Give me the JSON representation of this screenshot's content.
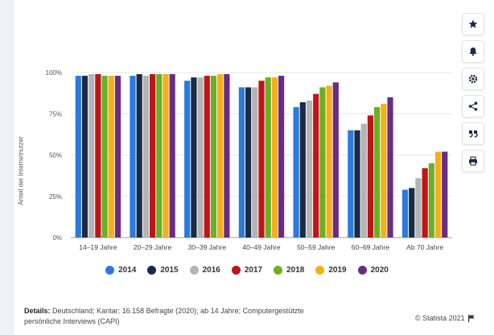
{
  "chart_data": {
    "type": "bar",
    "ylabel": "Anteil der Internetnutzer",
    "ylim": [
      0,
      100
    ],
    "yticks": [
      "0%",
      "25%",
      "50%",
      "75%",
      "100%"
    ],
    "ytick_values": [
      0,
      25,
      50,
      75,
      100
    ],
    "grid": true,
    "legend_position": "bottom",
    "categories": [
      "14–19 Jahre",
      "20–29 Jahre",
      "30–39 Jahre",
      "40–49 Jahre",
      "50–59 Jahre",
      "60–69 Jahre",
      "Ab 70 Jahre"
    ],
    "series": [
      {
        "name": "2014",
        "color": "#2b7bde",
        "values": [
          98,
          98,
          95,
          91,
          79,
          65,
          29
        ]
      },
      {
        "name": "2015",
        "color": "#1b2b45",
        "values": [
          98,
          99,
          97,
          91,
          82,
          65,
          30
        ]
      },
      {
        "name": "2016",
        "color": "#b4b4b4",
        "values": [
          99,
          98,
          97,
          91,
          83,
          69,
          36
        ]
      },
      {
        "name": "2017",
        "color": "#c01418",
        "values": [
          99,
          99,
          98,
          95,
          87,
          74,
          42
        ]
      },
      {
        "name": "2018",
        "color": "#6ab023",
        "values": [
          98,
          99,
          98,
          97,
          91,
          79,
          45
        ]
      },
      {
        "name": "2019",
        "color": "#f6ae1b",
        "values": [
          98,
          99,
          99,
          97,
          92,
          81,
          52
        ]
      },
      {
        "name": "2020",
        "color": "#6a2c83",
        "values": [
          98,
          99,
          99,
          98,
          94,
          85,
          52
        ]
      }
    ]
  },
  "footer": {
    "details_label": "Details:",
    "details_text": "Deutschland; Kantar; 16.158 Befragte (2020); ab 14 Jahre; Computergestützte persönliche Interviews (CAPI)",
    "copyright": "© Statista 2021"
  },
  "toolbar": {
    "icons": [
      "star-icon",
      "bell-icon",
      "gear-icon",
      "share-icon",
      "quote-icon",
      "print-icon"
    ]
  }
}
